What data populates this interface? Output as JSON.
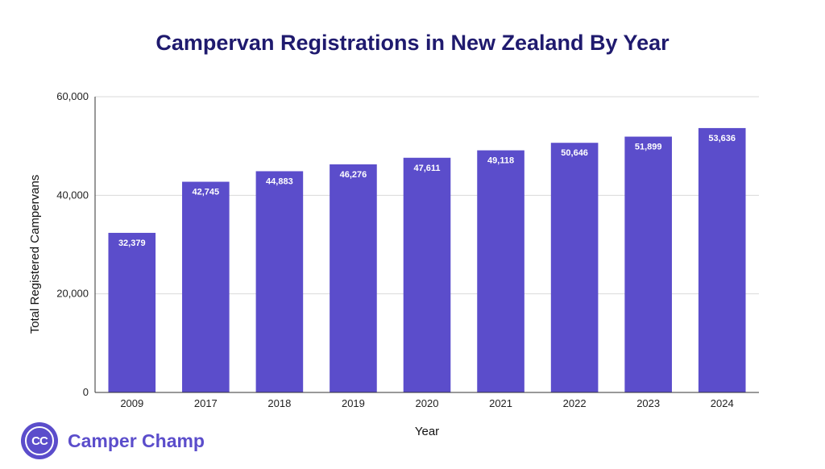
{
  "colors": {
    "title": "#1f1a6e",
    "bar": "#5b4dcb",
    "grid": "#d9d9d9",
    "axis": "#333333",
    "brand": "#5b4dcb"
  },
  "brand": {
    "logo_text": "CC",
    "name": "Camper Champ",
    "icon": "camper-champ-logo-icon"
  },
  "chart_data": {
    "type": "bar",
    "title": "Campervan Registrations in New Zealand By Year",
    "xlabel": "Year",
    "ylabel": "Total Registered Campervans",
    "categories": [
      "2009",
      "2017",
      "2018",
      "2019",
      "2020",
      "2021",
      "2022",
      "2023",
      "2024"
    ],
    "values": [
      32379,
      42745,
      44883,
      46276,
      47611,
      49118,
      50646,
      51899,
      53636
    ],
    "data_labels": [
      "32,379",
      "42,745",
      "44,883",
      "46,276",
      "47,611",
      "49,118",
      "50,646",
      "51,899",
      "53,636"
    ],
    "ylim": [
      0,
      60000
    ],
    "yticks": [
      0,
      20000,
      40000,
      60000
    ],
    "ytick_labels": [
      "0",
      "20,000",
      "40,000",
      "60,000"
    ],
    "grid": true,
    "legend": "none"
  }
}
